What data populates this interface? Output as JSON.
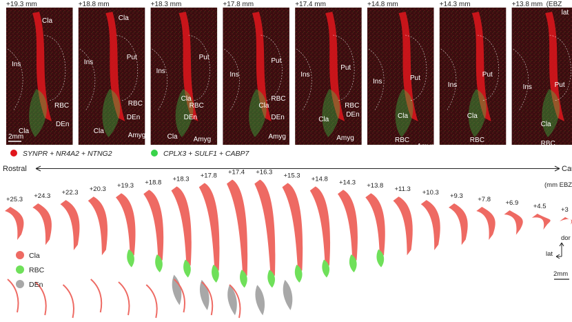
{
  "colors": {
    "cla": "#ee6a63",
    "rbc": "#6fe05a",
    "den": "#a8a8a8",
    "tissue": "#3a0d0f",
    "signal_red": "#e0161c",
    "signal_green": "#39d34a"
  },
  "panels": [
    {
      "depth": "+19.3 mm",
      "labels": [
        "Cla",
        "Ins",
        "RBC",
        "DEn",
        "Cla"
      ],
      "scalebar": "2mm"
    },
    {
      "depth": "+18.8 mm",
      "labels": [
        "Cla",
        "Put",
        "Ins",
        "RBC",
        "DEn",
        "Cla",
        "Amyg"
      ]
    },
    {
      "depth": "+18.3 mm",
      "labels": [
        "Put",
        "Ins",
        "RBC",
        "Cla",
        "DEn",
        "Cla",
        "Amyg"
      ]
    },
    {
      "depth": "+17.8 mm",
      "labels": [
        "Put",
        "Ins",
        "RBC",
        "Cla",
        "DEn",
        "Amyg"
      ]
    },
    {
      "depth": "+17.4 mm",
      "labels": [
        "Put",
        "Ins",
        "RBC",
        "DEn",
        "Cla",
        "Amyg"
      ]
    },
    {
      "depth": "+14.8 mm",
      "labels": [
        "Put",
        "Ins",
        "Cla",
        "RBC",
        "Amyg"
      ]
    },
    {
      "depth": "+14.3 mm",
      "labels": [
        "Put",
        "Ins",
        "Cla",
        "RBC"
      ]
    },
    {
      "depth": "+13.8 mm",
      "labels": [
        "Put",
        "Ins",
        "Cla",
        "RBC"
      ],
      "extra": "(EBZ",
      "orient": "lat"
    }
  ],
  "probe_legend": {
    "red": "SYNPR + NR4A2 + NTNG2",
    "green": "CPLX3 + SULF1 + CABP7"
  },
  "axis": {
    "left": "Rostral",
    "right": "Caud",
    "unit": "(mm EBZ"
  },
  "sections": [
    "+25.3",
    "+24.3",
    "+22.3",
    "+20.3",
    "+19.3",
    "+18.8",
    "+18.3",
    "+17.8",
    "+17.4",
    "+16.3",
    "+15.3",
    "+14.8",
    "+14.3",
    "+13.8",
    "+11.3",
    "+10.3",
    "+9.3",
    "+7.8",
    "+6.9",
    "+4.5",
    "+3"
  ],
  "region_legend": [
    {
      "key": "cla",
      "label": "Cla"
    },
    {
      "key": "rbc",
      "label": "RBC"
    },
    {
      "key": "den",
      "label": "DEn"
    }
  ],
  "orientation": {
    "dorsal": "dor",
    "lateral": "lat"
  },
  "scalebar_bottom": "2mm"
}
